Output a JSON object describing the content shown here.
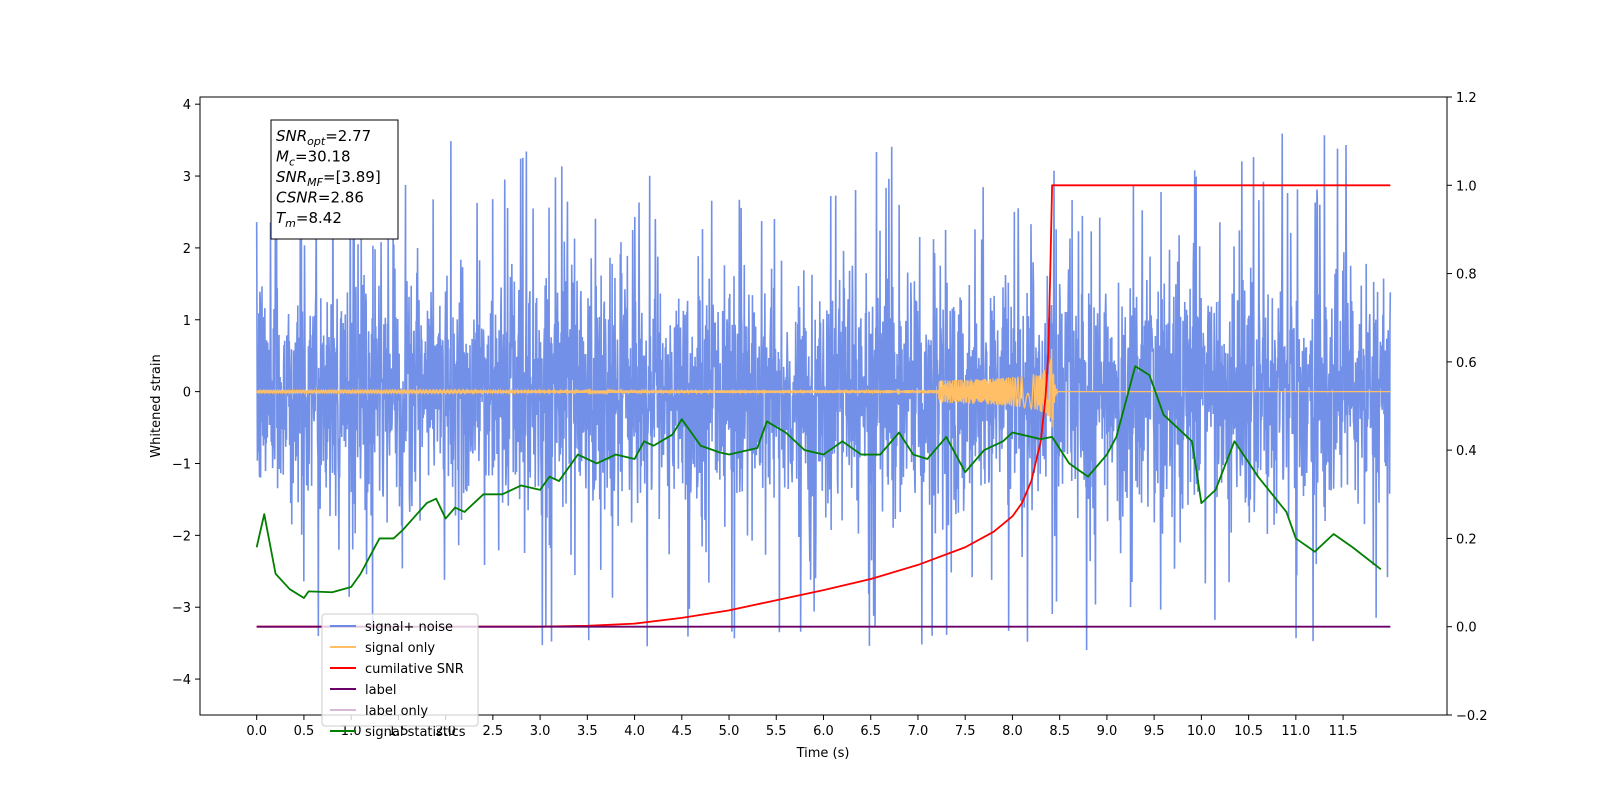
{
  "chart_data": {
    "type": "line",
    "xlabel": "Time (s)",
    "ylabel": "Whitened strain",
    "xlim": [
      -0.6,
      12.6
    ],
    "ylim": [
      -4.5,
      4.1
    ],
    "y2lim": [
      -0.2,
      1.2
    ],
    "x_ticks": [
      "0.0",
      "0.5",
      "1.0",
      "1.5",
      "2.0",
      "2.5",
      "3.0",
      "3.5",
      "4.0",
      "4.5",
      "5.0",
      "5.5",
      "6.0",
      "6.5",
      "7.0",
      "7.5",
      "8.0",
      "8.5",
      "9.0",
      "9.5",
      "10.0",
      "10.5",
      "11.0",
      "11.5"
    ],
    "y_ticks": [
      "4",
      "3",
      "2",
      "1",
      "0",
      "−1",
      "−2",
      "−3",
      "−4"
    ],
    "y_tick_values": [
      4,
      3,
      2,
      1,
      0,
      -1,
      -2,
      -3,
      -4
    ],
    "y2_ticks": [
      "1.2",
      "1.0",
      "0.8",
      "0.6",
      "0.4",
      "0.2",
      "0.0",
      "−0.2"
    ],
    "y2_tick_values": [
      1.2,
      1.0,
      0.8,
      0.6,
      0.4,
      0.2,
      0.0,
      -0.2
    ],
    "legend_position": "lower-left",
    "legend": [
      {
        "label": "signal+ noise",
        "color": "#6a8ae6"
      },
      {
        "label": "signal only",
        "color": "#ffbf66"
      },
      {
        "label": "cumilative SNR",
        "color": "#ff0000"
      },
      {
        "label": "label",
        "color": "#6a006a"
      },
      {
        "label": "label only",
        "color": "#d8b8d8"
      },
      {
        "label": "signal statistics",
        "color": "#007f00"
      }
    ],
    "info_box": [
      {
        "var": "SNR",
        "sub": "opt",
        "value": "=2.77"
      },
      {
        "var": "M",
        "sub": "c",
        "value": "=30.18"
      },
      {
        "var": "SNR",
        "sub": "MF",
        "value": "=[3.89]"
      },
      {
        "var": "CSNR",
        "sub": "",
        "value": "=2.86"
      },
      {
        "var": "T",
        "sub": "m",
        "value": "=8.42"
      }
    ],
    "series": [
      {
        "name": "signal+ noise",
        "axis": "left",
        "color": "#6a8ae6",
        "x_range": [
          0.0,
          12.0
        ],
        "noise_band": {
          "typical_abs": 1.6,
          "spike_max": 3.7,
          "spike_min": -4.1
        }
      },
      {
        "name": "signal only",
        "axis": "left",
        "color": "#ffbf66",
        "chirp": {
          "start": 0.0,
          "merger_time": 8.42,
          "peak_amplitude": 0.65
        }
      },
      {
        "name": "cumilative SNR",
        "axis": "right",
        "color": "#ff0000",
        "x": [
          0.0,
          3.0,
          3.5,
          4.0,
          4.5,
          5.0,
          5.5,
          6.0,
          6.5,
          7.0,
          7.5,
          7.8,
          8.0,
          8.1,
          8.2,
          8.3,
          8.35,
          8.38,
          8.4,
          8.42,
          8.5,
          12.0
        ],
        "y": [
          0.0,
          0.0,
          0.002,
          0.007,
          0.02,
          0.037,
          0.06,
          0.083,
          0.108,
          0.14,
          0.18,
          0.215,
          0.25,
          0.28,
          0.33,
          0.42,
          0.52,
          0.62,
          0.8,
          1.0,
          1.0,
          1.0
        ]
      },
      {
        "name": "label",
        "axis": "right",
        "color": "#6a006a",
        "x": [
          0.0,
          12.0
        ],
        "y": [
          0.0,
          0.0
        ]
      },
      {
        "name": "signal statistics",
        "axis": "right",
        "color": "#007f00",
        "x": [
          0.0,
          0.08,
          0.2,
          0.35,
          0.5,
          0.55,
          0.8,
          1.0,
          1.1,
          1.2,
          1.3,
          1.45,
          1.55,
          1.8,
          1.9,
          2.0,
          2.1,
          2.2,
          2.4,
          2.6,
          2.8,
          3.0,
          3.1,
          3.2,
          3.4,
          3.6,
          3.8,
          4.0,
          4.1,
          4.2,
          4.4,
          4.5,
          4.7,
          4.9,
          5.0,
          5.3,
          5.4,
          5.6,
          5.8,
          6.0,
          6.2,
          6.4,
          6.6,
          6.8,
          6.95,
          7.1,
          7.3,
          7.5,
          7.7,
          7.9,
          8.0,
          8.3,
          8.42,
          8.6,
          8.8,
          9.0,
          9.1,
          9.3,
          9.45,
          9.6,
          9.9,
          10.0,
          10.15,
          10.35,
          10.6,
          10.9,
          11.0,
          11.2,
          11.4,
          11.6,
          11.9
        ],
        "y": [
          0.18,
          0.255,
          0.12,
          0.085,
          0.065,
          0.08,
          0.078,
          0.09,
          0.12,
          0.16,
          0.2,
          0.2,
          0.22,
          0.28,
          0.29,
          0.245,
          0.27,
          0.26,
          0.3,
          0.3,
          0.32,
          0.31,
          0.34,
          0.33,
          0.39,
          0.37,
          0.39,
          0.38,
          0.42,
          0.41,
          0.435,
          0.47,
          0.41,
          0.395,
          0.39,
          0.405,
          0.465,
          0.44,
          0.4,
          0.39,
          0.42,
          0.39,
          0.39,
          0.44,
          0.39,
          0.38,
          0.43,
          0.35,
          0.4,
          0.42,
          0.44,
          0.425,
          0.43,
          0.37,
          0.34,
          0.39,
          0.43,
          0.59,
          0.57,
          0.48,
          0.42,
          0.28,
          0.31,
          0.42,
          0.34,
          0.26,
          0.2,
          0.17,
          0.21,
          0.18,
          0.13
        ]
      }
    ]
  }
}
